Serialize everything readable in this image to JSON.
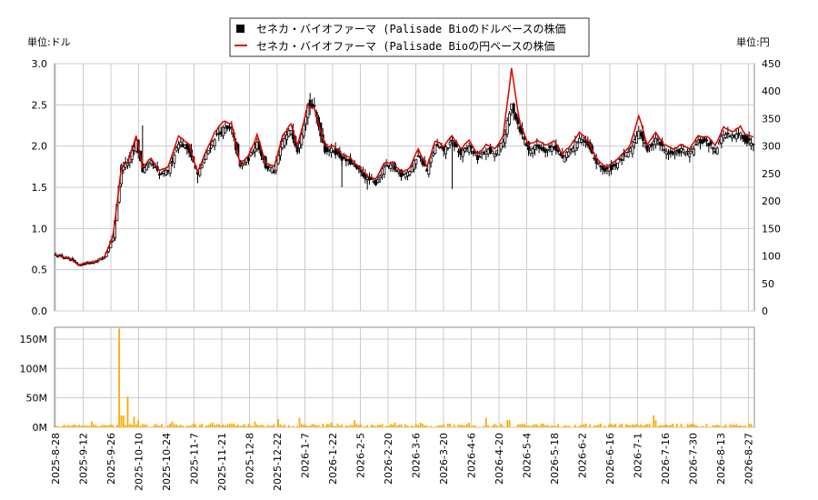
{
  "units": {
    "left": "単位:ドル",
    "right": "単位:円"
  },
  "legend": [
    {
      "label": "セネカ・バイオファーマ (Palisade Bioのドルベースの株価",
      "color": "#000000",
      "marker": "square"
    },
    {
      "label": "セネカ・バイオファーマ (Palisade Bioの円ベースの株価",
      "color": "#dd0000",
      "marker": "line"
    }
  ],
  "chart_data": [
    {
      "type": "line",
      "subtype": "candlestick+line",
      "ylim_left": [
        0,
        3.0
      ],
      "ylim_right": [
        0,
        450
      ],
      "left_ticks": [
        "0.0",
        "0.5",
        "1.0",
        "1.5",
        "2.0",
        "2.5",
        "3.0"
      ],
      "right_ticks": [
        "0",
        "50",
        "100",
        "150",
        "200",
        "250",
        "300",
        "350",
        "400",
        "450"
      ],
      "x_ticks": [
        "2025-8-28",
        "2025-9-12",
        "2025-9-26",
        "2025-10-10",
        "2025-10-24",
        "2025-11-7",
        "2025-11-21",
        "2025-12-8",
        "2025-12-22",
        "2026-1-7",
        "2026-1-22",
        "2026-2-5",
        "2026-2-20",
        "2026-3-6",
        "2026-3-20",
        "2026-4-6",
        "2026-4-20",
        "2026-5-4",
        "2026-5-18",
        "2026-6-2",
        "2026-6-16",
        "2026-7-1",
        "2026-7-16",
        "2026-7-30",
        "2026-8-13",
        "2026-8-27"
      ],
      "grid": true,
      "series": [
        {
          "name": "セネカ・バイオファーマ (Palisade Bioのドルベースの株価",
          "axis": "left",
          "color": "#000000",
          "anchors": [
            [
              0,
              0.68
            ],
            [
              7,
              0.62
            ],
            [
              11,
              0.55
            ],
            [
              14,
              0.58
            ],
            [
              19,
              0.6
            ],
            [
              23,
              0.66
            ],
            [
              27,
              0.9
            ],
            [
              29,
              1.3
            ],
            [
              31,
              1.75
            ],
            [
              34,
              1.8
            ],
            [
              38,
              2.05
            ],
            [
              41,
              1.7
            ],
            [
              45,
              1.8
            ],
            [
              49,
              1.65
            ],
            [
              53,
              1.7
            ],
            [
              58,
              2.05
            ],
            [
              63,
              1.95
            ],
            [
              67,
              1.65
            ],
            [
              71,
              1.9
            ],
            [
              75,
              2.1
            ],
            [
              79,
              2.2
            ],
            [
              83,
              2.2
            ],
            [
              87,
              1.75
            ],
            [
              91,
              1.85
            ],
            [
              95,
              2.05
            ],
            [
              99,
              1.75
            ],
            [
              103,
              1.7
            ],
            [
              107,
              2.05
            ],
            [
              111,
              2.2
            ],
            [
              114,
              1.95
            ],
            [
              119,
              2.5
            ],
            [
              122,
              2.45
            ],
            [
              127,
              1.95
            ],
            [
              131,
              1.95
            ],
            [
              135,
              1.85
            ],
            [
              139,
              1.8
            ],
            [
              143,
              1.7
            ],
            [
              147,
              1.6
            ],
            [
              151,
              1.55
            ],
            [
              155,
              1.75
            ],
            [
              159,
              1.75
            ],
            [
              163,
              1.65
            ],
            [
              167,
              1.7
            ],
            [
              171,
              1.9
            ],
            [
              175,
              1.7
            ],
            [
              179,
              2.0
            ],
            [
              183,
              1.95
            ],
            [
              187,
              2.05
            ],
            [
              191,
              1.9
            ],
            [
              195,
              2.0
            ],
            [
              199,
              1.85
            ],
            [
              203,
              1.95
            ],
            [
              207,
              1.9
            ],
            [
              211,
              2.05
            ],
            [
              215,
              2.5
            ],
            [
              219,
              2.2
            ],
            [
              223,
              1.95
            ],
            [
              227,
              2.0
            ],
            [
              231,
              1.95
            ],
            [
              235,
              2.0
            ],
            [
              239,
              1.85
            ],
            [
              243,
              1.95
            ],
            [
              247,
              2.1
            ],
            [
              251,
              2.0
            ],
            [
              255,
              1.8
            ],
            [
              259,
              1.7
            ],
            [
              263,
              1.75
            ],
            [
              267,
              1.85
            ],
            [
              271,
              1.95
            ],
            [
              275,
              2.2
            ],
            [
              279,
              1.95
            ],
            [
              283,
              2.1
            ],
            [
              287,
              1.95
            ],
            [
              291,
              1.9
            ],
            [
              295,
              1.95
            ],
            [
              299,
              1.9
            ],
            [
              303,
              2.05
            ],
            [
              307,
              2.05
            ],
            [
              311,
              1.95
            ],
            [
              315,
              2.15
            ],
            [
              319,
              2.1
            ],
            [
              323,
              2.15
            ],
            [
              326,
              2.05
            ]
          ]
        },
        {
          "name": "セネカ・バイオファーマ (Palisade Bioの円ベースの株価",
          "axis": "right",
          "color": "#dd0000",
          "anchors": [
            [
              0,
              102
            ],
            [
              7,
              95
            ],
            [
              11,
              83
            ],
            [
              14,
              88
            ],
            [
              19,
              90
            ],
            [
              23,
              98
            ],
            [
              27,
              135
            ],
            [
              29,
              195
            ],
            [
              31,
              262
            ],
            [
              34,
              270
            ],
            [
              38,
              318
            ],
            [
              41,
              262
            ],
            [
              45,
              278
            ],
            [
              49,
              255
            ],
            [
              53,
              262
            ],
            [
              58,
              318
            ],
            [
              63,
              302
            ],
            [
              67,
              252
            ],
            [
              71,
              292
            ],
            [
              75,
              325
            ],
            [
              79,
              345
            ],
            [
              83,
              342
            ],
            [
              87,
              268
            ],
            [
              91,
              282
            ],
            [
              95,
              320
            ],
            [
              99,
              270
            ],
            [
              103,
              262
            ],
            [
              107,
              318
            ],
            [
              111,
              342
            ],
            [
              114,
              300
            ],
            [
              119,
              375
            ],
            [
              122,
              368
            ],
            [
              127,
              300
            ],
            [
              131,
              300
            ],
            [
              135,
              285
            ],
            [
              139,
              278
            ],
            [
              143,
              262
            ],
            [
              147,
              245
            ],
            [
              151,
              240
            ],
            [
              155,
              270
            ],
            [
              159,
              270
            ],
            [
              163,
              252
            ],
            [
              167,
              260
            ],
            [
              171,
              295
            ],
            [
              175,
              262
            ],
            [
              179,
              310
            ],
            [
              183,
              300
            ],
            [
              187,
              318
            ],
            [
              191,
              295
            ],
            [
              195,
              310
            ],
            [
              199,
              285
            ],
            [
              203,
              302
            ],
            [
              207,
              295
            ],
            [
              211,
              318
            ],
            [
              215,
              440
            ],
            [
              219,
              340
            ],
            [
              223,
              302
            ],
            [
              227,
              310
            ],
            [
              231,
              302
            ],
            [
              235,
              310
            ],
            [
              239,
              285
            ],
            [
              243,
              302
            ],
            [
              247,
              325
            ],
            [
              251,
              310
            ],
            [
              255,
              278
            ],
            [
              259,
              262
            ],
            [
              263,
              270
            ],
            [
              267,
              285
            ],
            [
              271,
              302
            ],
            [
              275,
              355
            ],
            [
              279,
              302
            ],
            [
              283,
              325
            ],
            [
              287,
              302
            ],
            [
              291,
              295
            ],
            [
              295,
              302
            ],
            [
              299,
              295
            ],
            [
              303,
              318
            ],
            [
              307,
              318
            ],
            [
              311,
              302
            ],
            [
              315,
              335
            ],
            [
              319,
              325
            ],
            [
              323,
              335
            ],
            [
              326,
              318
            ]
          ]
        }
      ]
    },
    {
      "type": "bar",
      "ylim": [
        0,
        170
      ],
      "y_ticks": [
        "0M",
        "50M",
        "100M",
        "150M"
      ],
      "color": "#ffaa00",
      "series": [
        {
          "name": "",
          "baseline": 4,
          "spikes": [
            [
              6,
              4
            ],
            [
              17,
              10
            ],
            [
              30,
              168
            ],
            [
              31,
              20
            ],
            [
              32,
              20
            ],
            [
              34,
              52
            ],
            [
              37,
              18
            ],
            [
              39,
              12
            ],
            [
              55,
              10
            ],
            [
              74,
              8
            ],
            [
              94,
              10
            ],
            [
              105,
              14
            ],
            [
              115,
              16
            ],
            [
              130,
              8
            ],
            [
              141,
              12
            ],
            [
              160,
              8
            ],
            [
              172,
              8
            ],
            [
              195,
              8
            ],
            [
              203,
              16
            ],
            [
              213,
              12
            ],
            [
              214,
              12
            ],
            [
              230,
              6
            ],
            [
              262,
              6
            ],
            [
              270,
              4
            ],
            [
              282,
              20
            ],
            [
              283,
              12
            ],
            [
              300,
              6
            ],
            [
              320,
              4
            ]
          ]
        }
      ]
    }
  ]
}
